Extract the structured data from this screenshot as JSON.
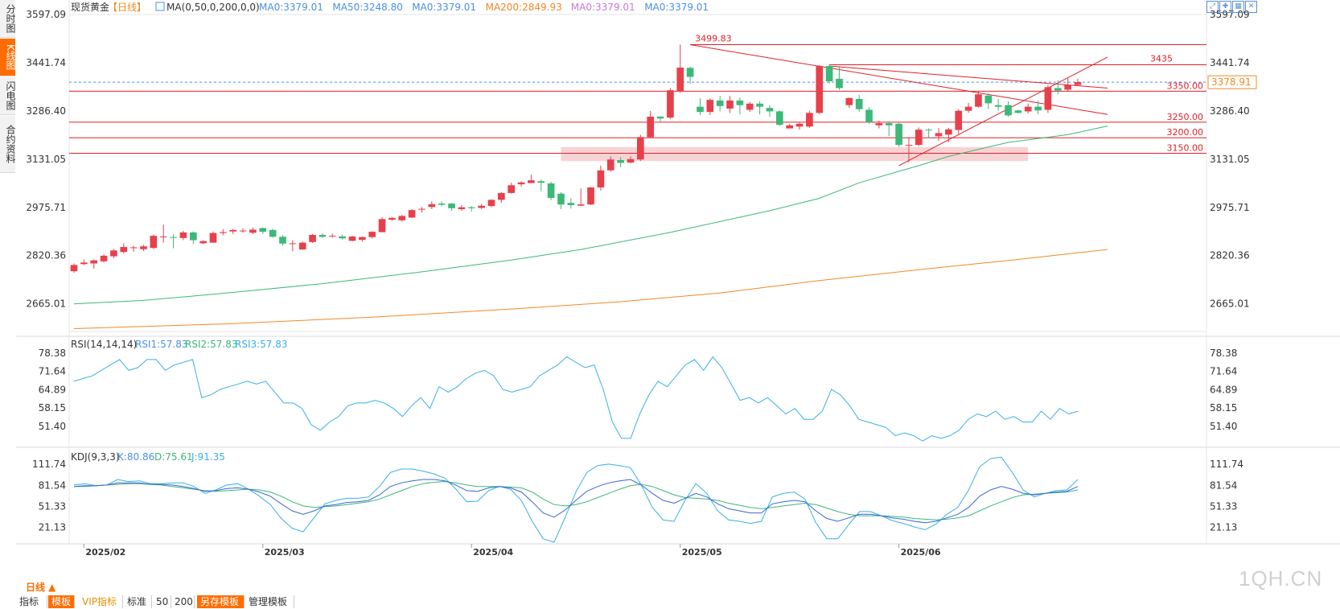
{
  "side_tabs": [
    "分时图",
    "K线图",
    "闪电图",
    "合约资料"
  ],
  "header": {
    "symbol": "现货黄金",
    "period": "【日线】",
    "ma_label": "MA(0,50,0,200,0,0)",
    "ma_items": [
      {
        "text": "MA0:3379.01",
        "color": "#4a90e2"
      },
      {
        "text": "MA50:3248.80",
        "color": "#4a90e2"
      },
      {
        "text": "MA0:3379.01",
        "color": "#4a90e2"
      },
      {
        "text": "MA200:2849.93",
        "color": "#f08a24"
      },
      {
        "text": "MA0:3379.01",
        "color": "#c878d8"
      },
      {
        "text": "MA0:3379.01",
        "color": "#4a90e2"
      }
    ]
  },
  "rsi_header": {
    "label": "RSI(14,14,14)",
    "items": [
      "RSI1:57.83",
      "RSI2:57.83",
      "RSI3:57.83"
    ]
  },
  "kdj_header": {
    "label": "KDJ(9,3,3)",
    "items": [
      "K:80.86",
      "D:75.61",
      "J:91.35"
    ]
  },
  "period_button": "日线 ▲",
  "bottom_tabs": [
    "指标",
    "模板",
    "VIP指标",
    "标准",
    "50",
    "200",
    "另存模板",
    "管理模板"
  ],
  "watermark": "1QH.CN",
  "colors": {
    "up": "#e8404b",
    "down": "#3cb878",
    "ma50": "#3cb878",
    "ma200": "#f08a24",
    "rsi": "#38b0e6",
    "level": "#e0202a"
  },
  "chart_data": {
    "type": "candlestick",
    "price_axis": {
      "ticks": [
        "3597.09",
        "3441.74",
        "3286.40",
        "3131.05",
        "2975.71",
        "2820.36",
        "2665.01"
      ],
      "ylim": [
        2576,
        3597.09
      ]
    },
    "x_axis": {
      "ticks": [
        "2025/02",
        "2025/03",
        "2025/04",
        "2025/05",
        "2025/06"
      ]
    },
    "candles": [
      [
        2770,
        2790,
        2765,
        2795
      ],
      [
        2793,
        2798,
        2790,
        2808
      ],
      [
        2795,
        2805,
        2778,
        2808
      ],
      [
        2802,
        2820,
        2798,
        2824
      ],
      [
        2818,
        2837,
        2812,
        2842
      ],
      [
        2832,
        2848,
        2828,
        2860
      ],
      [
        2845,
        2847,
        2833,
        2852
      ],
      [
        2841,
        2850,
        2835,
        2855
      ],
      [
        2845,
        2884,
        2842,
        2888
      ],
      [
        2880,
        2882,
        2862,
        2920
      ],
      [
        2880,
        2878,
        2844,
        2889
      ],
      [
        2877,
        2895,
        2870,
        2900
      ],
      [
        2895,
        2870,
        2858,
        2898
      ],
      [
        2860,
        2867,
        2857,
        2870
      ],
      [
        2862,
        2893,
        2862,
        2898
      ],
      [
        2893,
        2896,
        2886,
        2906
      ],
      [
        2898,
        2903,
        2890,
        2906
      ],
      [
        2901,
        2901,
        2894,
        2908
      ],
      [
        2894,
        2904,
        2890,
        2911
      ],
      [
        2909,
        2897,
        2890,
        2911
      ],
      [
        2903,
        2881,
        2878,
        2907
      ],
      [
        2881,
        2859,
        2852,
        2886
      ],
      [
        2858,
        2860,
        2834,
        2870
      ],
      [
        2840,
        2862,
        2839,
        2866
      ],
      [
        2864,
        2887,
        2861,
        2890
      ],
      [
        2887,
        2881,
        2877,
        2893
      ],
      [
        2884,
        2884,
        2878,
        2891
      ],
      [
        2882,
        2876,
        2872,
        2888
      ],
      [
        2868,
        2882,
        2866,
        2884
      ],
      [
        2871,
        2880,
        2865,
        2882
      ],
      [
        2880,
        2897,
        2875,
        2899
      ],
      [
        2896,
        2938,
        2895,
        2944
      ],
      [
        2936,
        2942,
        2932,
        2945
      ],
      [
        2934,
        2948,
        2930,
        2951
      ],
      [
        2943,
        2967,
        2941,
        2970
      ],
      [
        2969,
        2971,
        2959,
        2977
      ],
      [
        2977,
        2986,
        2970,
        2995
      ],
      [
        2988,
        2984,
        2979,
        2995
      ],
      [
        2988,
        2973,
        2965,
        2990
      ],
      [
        2970,
        2976,
        2965,
        2983
      ],
      [
        2976,
        2973,
        2962,
        2980
      ],
      [
        2974,
        2981,
        2970,
        2987
      ],
      [
        2980,
        3000,
        2976,
        3002
      ],
      [
        3000,
        3022,
        2990,
        3025
      ],
      [
        3022,
        3047,
        3020,
        3055
      ],
      [
        3050,
        3056,
        3042,
        3060
      ],
      [
        3054,
        3063,
        3054,
        3081
      ],
      [
        3060,
        3055,
        3028,
        3065
      ],
      [
        3053,
        3006,
        2999,
        3058
      ],
      [
        3020,
        2985,
        2970,
        3025
      ],
      [
        2990,
        2983,
        2972,
        3005
      ],
      [
        2981,
        2985,
        2980,
        3037
      ],
      [
        2985,
        3040,
        2983,
        3041
      ],
      [
        3040,
        3095,
        3030,
        3110
      ],
      [
        3095,
        3130,
        3090,
        3140
      ],
      [
        3128,
        3119,
        3105,
        3138
      ],
      [
        3120,
        3131,
        3118,
        3140
      ],
      [
        3130,
        3202,
        3125,
        3210
      ],
      [
        3202,
        3268,
        3200,
        3286
      ],
      [
        3268,
        3262,
        3250,
        3270
      ],
      [
        3265,
        3353,
        3260,
        3360
      ],
      [
        3350,
        3426,
        3344,
        3500
      ],
      [
        3425,
        3396,
        3374,
        3429
      ],
      [
        3300,
        3283,
        3273,
        3327
      ],
      [
        3283,
        3322,
        3273,
        3327
      ],
      [
        3320,
        3302,
        3285,
        3335
      ],
      [
        3294,
        3320,
        3280,
        3335
      ],
      [
        3320,
        3305,
        3275,
        3330
      ],
      [
        3290,
        3310,
        3283,
        3315
      ],
      [
        3310,
        3300,
        3275,
        3318
      ],
      [
        3296,
        3285,
        3268,
        3305
      ],
      [
        3285,
        3242,
        3238,
        3288
      ],
      [
        3230,
        3240,
        3232,
        3245
      ],
      [
        3236,
        3245,
        3226,
        3251
      ],
      [
        3236,
        3280,
        3232,
        3287
      ],
      [
        3280,
        3431,
        3276,
        3434
      ],
      [
        3431,
        3382,
        3374,
        3436
      ],
      [
        3390,
        3360,
        3354,
        3431
      ],
      [
        3305,
        3328,
        3296,
        3330
      ],
      [
        3325,
        3292,
        3283,
        3338
      ],
      [
        3290,
        3250,
        3245,
        3298
      ],
      [
        3240,
        3247,
        3230,
        3255
      ],
      [
        3247,
        3240,
        3205,
        3253
      ],
      [
        3245,
        3177,
        3170,
        3250
      ],
      [
        3177,
        3177,
        3120,
        3200
      ],
      [
        3177,
        3226,
        3173,
        3233
      ],
      [
        3226,
        3224,
        3200,
        3230
      ],
      [
        3205,
        3215,
        3190,
        3231
      ],
      [
        3210,
        3227,
        3186,
        3232
      ],
      [
        3225,
        3287,
        3212,
        3292
      ],
      [
        3287,
        3300,
        3280,
        3312
      ],
      [
        3300,
        3340,
        3297,
        3349
      ],
      [
        3336,
        3311,
        3293,
        3344
      ],
      [
        3305,
        3300,
        3287,
        3325
      ],
      [
        3305,
        3272,
        3268,
        3318
      ],
      [
        3288,
        3280,
        3278,
        3290
      ],
      [
        3285,
        3300,
        3278,
        3310
      ],
      [
        3300,
        3288,
        3276,
        3320
      ],
      [
        3290,
        3363,
        3280,
        3370
      ],
      [
        3360,
        3352,
        3340,
        3385
      ],
      [
        3355,
        3370,
        3350,
        3392
      ],
      [
        3370,
        3379,
        3368,
        3390
      ]
    ],
    "ma50": [
      [
        0,
        2665
      ],
      [
        7,
        2676
      ],
      [
        12,
        2690
      ],
      [
        17,
        2705
      ],
      [
        25,
        2730
      ],
      [
        35,
        2768
      ],
      [
        44,
        2806
      ],
      [
        51,
        2840
      ],
      [
        60,
        2895
      ],
      [
        70,
        2965
      ],
      [
        75,
        3005
      ],
      [
        79,
        3055
      ],
      [
        85,
        3110
      ],
      [
        88,
        3140
      ],
      [
        94,
        3185
      ],
      [
        100,
        3210
      ],
      [
        104,
        3238
      ]
    ],
    "ma200": [
      [
        0,
        2585
      ],
      [
        15,
        2600
      ],
      [
        30,
        2622
      ],
      [
        45,
        2650
      ],
      [
        55,
        2672
      ],
      [
        65,
        2700
      ],
      [
        75,
        2740
      ],
      [
        85,
        2775
      ],
      [
        95,
        2808
      ],
      [
        104,
        2840
      ]
    ],
    "levels": [
      {
        "value": 3350,
        "label": "3350.00"
      },
      {
        "value": 3250,
        "label": "3250.00"
      },
      {
        "value": 3200,
        "label": "3200.00"
      },
      {
        "value": 3150,
        "label": "3150.00"
      }
    ],
    "level_3435": {
      "value": 3435,
      "label": "3435"
    },
    "level_high": {
      "value": 3499.83,
      "label": "3499.83"
    },
    "current_price": {
      "value": 3378.91,
      "label": "3378.91"
    },
    "zone": {
      "from_index": 49,
      "to_index": 96,
      "low": 3125,
      "high": 3170
    },
    "trendlines": [
      {
        "from": [
          62,
          3499.83
        ],
        "to": [
          104,
          3275
        ]
      },
      {
        "from": [
          76,
          3431
        ],
        "to": [
          104,
          3360
        ]
      },
      {
        "from": [
          83,
          3110
        ],
        "to": [
          104,
          3460
        ]
      }
    ],
    "rsi": {
      "ticks": [
        "78.38",
        "71.64",
        "64.89",
        "58.15",
        "51.40"
      ],
      "ylim": [
        44,
        81
      ],
      "values": [
        68,
        69,
        70,
        72,
        74,
        76,
        72,
        73,
        76,
        76,
        72,
        74,
        75,
        76,
        62,
        63,
        65,
        66,
        67,
        68,
        67,
        68,
        64,
        60,
        60,
        58,
        52,
        50,
        53,
        55,
        59,
        60,
        60,
        61,
        60,
        58,
        55,
        59,
        62,
        58,
        66,
        64,
        66,
        69,
        71,
        72,
        70,
        65,
        64,
        65,
        66,
        70,
        72,
        74,
        77,
        75,
        73,
        74,
        65,
        53,
        47,
        47,
        56,
        63,
        68,
        66,
        70,
        74,
        76,
        72,
        77,
        73,
        67,
        61,
        62,
        60,
        62,
        59,
        56,
        58,
        54,
        54,
        57,
        65,
        63,
        59,
        54,
        53,
        52,
        51,
        48,
        49,
        48,
        46,
        48,
        47,
        48,
        50,
        54,
        56,
        55,
        57,
        54,
        55,
        53,
        53,
        57,
        54,
        58,
        56,
        57
      ]
    },
    "kdj": {
      "ticks": [
        "111.74",
        "81.54",
        "51.33",
        "21.13"
      ],
      "ylim": [
        0,
        120
      ],
      "k": [
        80,
        81,
        81,
        82,
        85,
        85,
        85,
        83,
        83,
        82,
        80,
        77,
        73,
        74,
        77,
        78,
        76,
        72,
        66,
        55,
        45,
        40,
        45,
        52,
        54,
        57,
        58,
        60,
        68,
        80,
        85,
        88,
        90,
        90,
        88,
        82,
        74,
        73,
        78,
        80,
        78,
        72,
        58,
        42,
        36,
        46,
        60,
        73,
        80,
        85,
        88,
        90,
        82,
        70,
        60,
        56,
        63,
        70,
        65,
        55,
        48,
        45,
        42,
        42,
        55,
        58,
        60,
        58,
        45,
        34,
        30,
        35,
        40,
        40,
        38,
        35,
        33,
        30,
        28,
        30,
        35,
        40,
        50,
        66,
        75,
        80,
        76,
        70,
        68,
        70,
        72,
        73,
        80
      ],
      "d": [
        80,
        80,
        81,
        82,
        83,
        84,
        84,
        83,
        82,
        80,
        78,
        76,
        74,
        73,
        74,
        75,
        76,
        75,
        72,
        66,
        58,
        52,
        50,
        51,
        52,
        54,
        56,
        58,
        62,
        68,
        74,
        80,
        84,
        86,
        87,
        85,
        82,
        80,
        80,
        80,
        79,
        78,
        72,
        62,
        54,
        52,
        54,
        58,
        64,
        70,
        76,
        81,
        83,
        80,
        74,
        68,
        64,
        63,
        62,
        60,
        56,
        53,
        50,
        48,
        50,
        52,
        54,
        56,
        54,
        49,
        44,
        40,
        38,
        38,
        38,
        37,
        36,
        34,
        33,
        32,
        33,
        35,
        38,
        45,
        52,
        58,
        64,
        68,
        69,
        70,
        71,
        72,
        75
      ],
      "j": [
        82,
        84,
        81,
        82,
        90,
        87,
        88,
        84,
        84,
        85,
        85,
        80,
        70,
        75,
        82,
        84,
        76,
        66,
        54,
        34,
        20,
        15,
        35,
        55,
        60,
        63,
        63,
        65,
        80,
        100,
        105,
        105,
        102,
        98,
        92,
        76,
        58,
        59,
        74,
        80,
        76,
        60,
        30,
        5,
        0,
        35,
        72,
        100,
        110,
        112,
        110,
        107,
        82,
        50,
        32,
        30,
        60,
        84,
        70,
        45,
        32,
        30,
        27,
        30,
        65,
        70,
        72,
        62,
        28,
        5,
        5,
        25,
        44,
        44,
        38,
        31,
        27,
        22,
        18,
        26,
        40,
        50,
        75,
        108,
        120,
        122,
        100,
        75,
        65,
        70,
        74,
        75,
        90
      ]
    }
  }
}
